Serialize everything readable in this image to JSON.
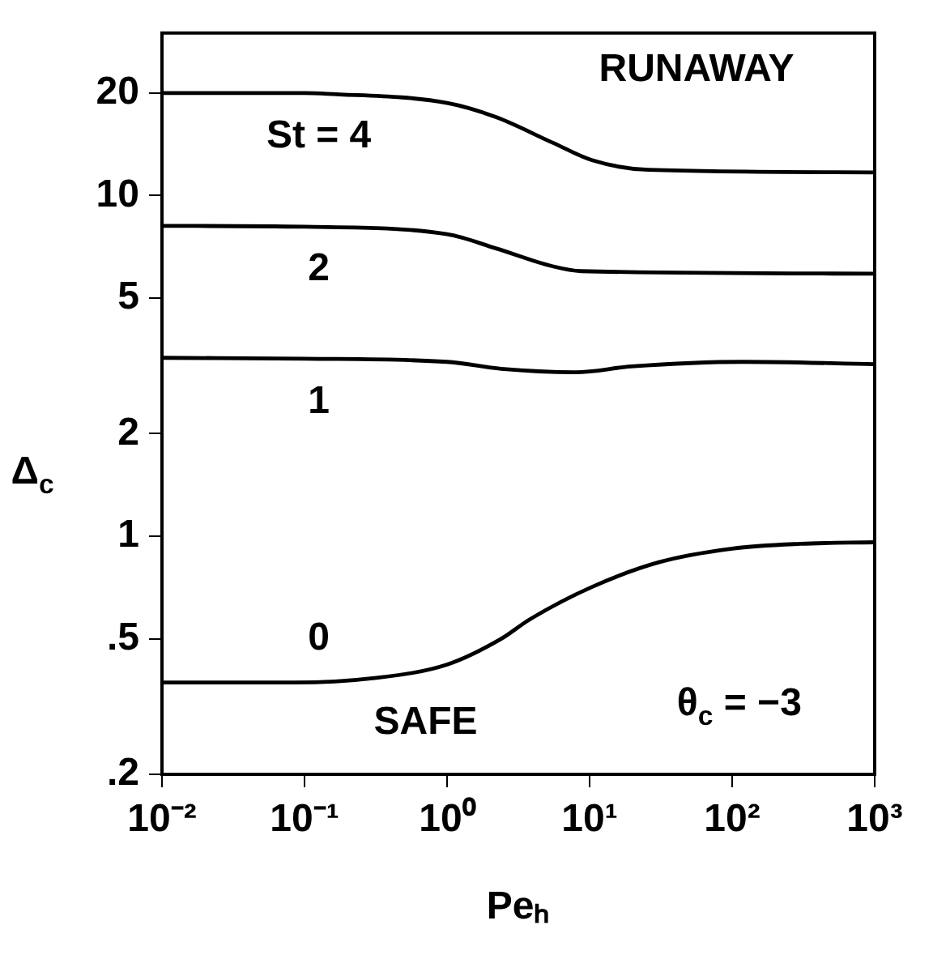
{
  "chart_data": {
    "type": "line",
    "log": "xy",
    "xlabel": "Peₕ",
    "ylabel": "Δ$_{c}$",
    "xlim": [
      0.01,
      1000
    ],
    "ylim": [
      0.2,
      30
    ],
    "xticks": [
      {
        "value": 0.01,
        "label": "10⁻²"
      },
      {
        "value": 0.1,
        "label": "10⁻¹"
      },
      {
        "value": 1,
        "label": "10⁰"
      },
      {
        "value": 10,
        "label": "10¹"
      },
      {
        "value": 100,
        "label": "10²"
      },
      {
        "value": 1000,
        "label": "10³"
      }
    ],
    "yticks": [
      {
        "value": 0.2,
        "label": ".2"
      },
      {
        "value": 0.5,
        "label": ".5"
      },
      1,
      2,
      5,
      10,
      20
    ],
    "grid": false,
    "marker": "none",
    "line_style": "solid",
    "series": [
      {
        "name": "St = 4",
        "color": "#000000",
        "x": [
          0.01,
          0.1,
          0.145,
          1,
          2.2,
          5.5,
          10.4,
          26,
          1000
        ],
        "values": [
          20,
          20,
          19.9,
          18.7,
          17,
          14.3,
          12.7,
          11.9,
          11.7
        ]
      },
      {
        "name": "2",
        "color": "#000000",
        "x": [
          0.01,
          0.1,
          1,
          2.2,
          5.5,
          8.7,
          1000
        ],
        "values": [
          8.15,
          8.1,
          7.7,
          7,
          6.2,
          6,
          5.9
        ]
      },
      {
        "name": "1",
        "color": "#000000",
        "x": [
          0.01,
          0.1,
          1,
          2.4,
          8,
          19.5,
          120,
          1000
        ],
        "values": [
          3.34,
          3.32,
          3.25,
          3.1,
          3.03,
          3.15,
          3.25,
          3.2
        ]
      },
      {
        "name": "0",
        "color": "#000000",
        "x": [
          0.01,
          0.085,
          0.3,
          1,
          2.4,
          3.8,
          10.4,
          31,
          100,
          300,
          1000
        ],
        "values": [
          0.372,
          0.372,
          0.383,
          0.42,
          0.5,
          0.57,
          0.71,
          0.84,
          0.92,
          0.95,
          0.96
        ]
      }
    ],
    "annotations": [
      "RUNAWAY",
      "SAFE",
      "θ$_{c}$ = −3"
    ]
  }
}
